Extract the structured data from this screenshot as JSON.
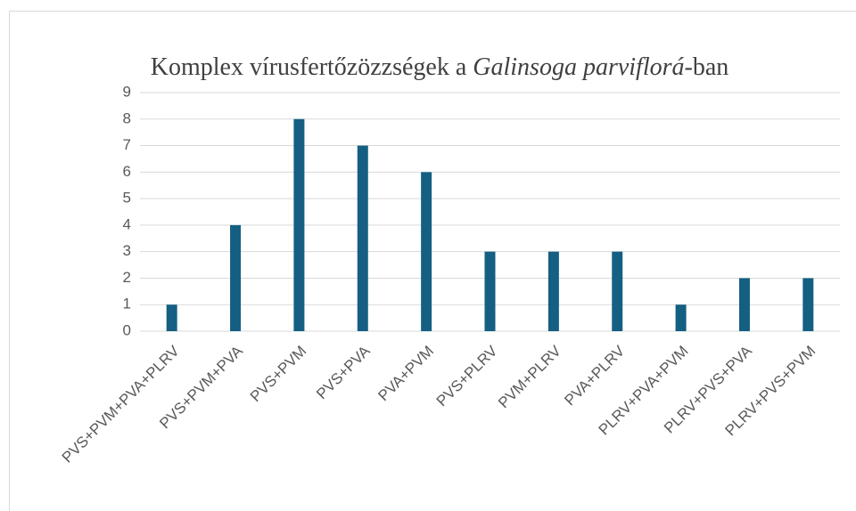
{
  "chart_data": {
    "type": "bar",
    "title": [
      "Komplex vírusfertőzözzségek a ",
      "Galinsoga parviflorá",
      "-ban"
    ],
    "categories": [
      "PVS+PVM+PVA+PLRV",
      "PVS+PVM+PVA",
      "PVS+PVM",
      "PVS+PVA",
      "PVA+PVM",
      "PVS+PLRV",
      "PVM+PLRV",
      "PVA+PLRV",
      "PLRV+PVA+PVM",
      "PLRV+PVS+PVA",
      "PLRV+PVS+PVM"
    ],
    "values": [
      1,
      4,
      8,
      7,
      6,
      3,
      3,
      3,
      1,
      2,
      2
    ],
    "color": "#155f82",
    "ylim": [
      0,
      9
    ],
    "yticks": [
      0,
      1,
      2,
      3,
      4,
      5,
      6,
      7,
      8,
      9
    ],
    "grid": true
  }
}
